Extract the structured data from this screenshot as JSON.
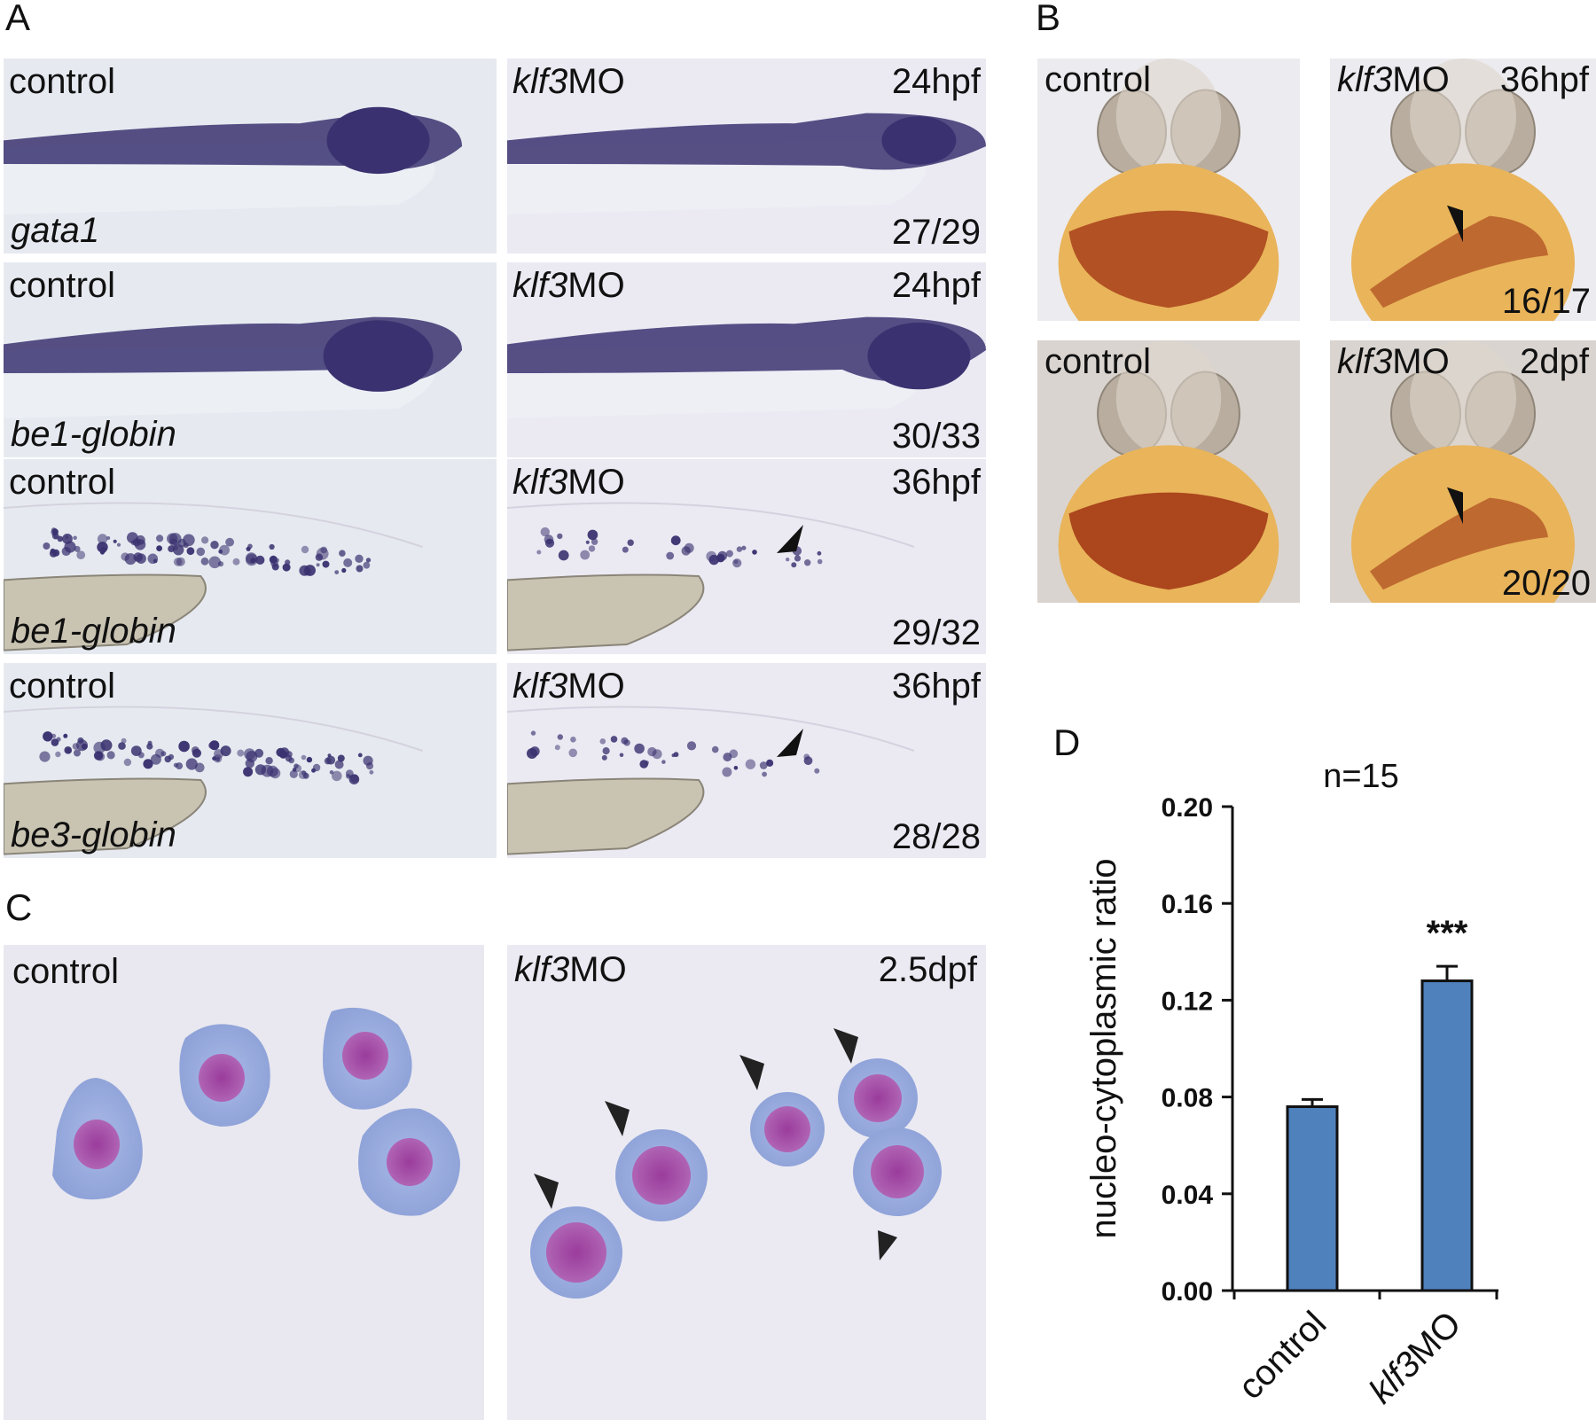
{
  "panel_labels": {
    "A": "A",
    "B": "B",
    "C": "C",
    "D": "D"
  },
  "panel_a": {
    "rows": [
      {
        "left_label": "control",
        "right_label_italic": "klf3",
        "right_label_rest": "MO",
        "stage": "24hpf",
        "gene": "gata1",
        "count": "27/29",
        "arrow": false
      },
      {
        "left_label": "control",
        "right_label_italic": "klf3",
        "right_label_rest": "MO",
        "stage": "24hpf",
        "gene": "be1-globin",
        "count": "30/33",
        "arrow": false
      },
      {
        "left_label": "control",
        "right_label_italic": "klf3",
        "right_label_rest": "MO",
        "stage": "36hpf",
        "gene": "be1-globin",
        "count": "29/32",
        "arrow": true
      },
      {
        "left_label": "control",
        "right_label_italic": "klf3",
        "right_label_rest": "MO",
        "stage": "36hpf",
        "gene": "be3-globin",
        "count": "28/28",
        "arrow": true
      }
    ]
  },
  "panel_b": {
    "rows": [
      {
        "left_label": "control",
        "right_label_italic": "klf3",
        "right_label_rest": "MO",
        "stage": "36hpf",
        "count": "16/17"
      },
      {
        "left_label": "control",
        "right_label_italic": "klf3",
        "right_label_rest": "MO",
        "stage": "2dpf",
        "count": "20/20"
      }
    ]
  },
  "panel_c": {
    "left_label": "control",
    "right_label_italic": "klf3",
    "right_label_rest": "MO",
    "stage": "2.5dpf"
  },
  "chart_data": {
    "type": "bar",
    "title": "n=15",
    "ylabel": "nucleo-cytoplasmic ratio",
    "xlabel": "",
    "categories": [
      "control",
      "klf3MO"
    ],
    "category_labels": [
      {
        "italic": "",
        "rest": "control"
      },
      {
        "italic": "klf3",
        "rest": "MO"
      }
    ],
    "values": [
      0.076,
      0.128
    ],
    "errors": [
      0.003,
      0.006
    ],
    "ylim": [
      0,
      0.2
    ],
    "yticks": [
      "0.00",
      "0.04",
      "0.08",
      "0.12",
      "0.16",
      "0.20"
    ],
    "ytick_values": [
      0,
      0.04,
      0.08,
      0.12,
      0.16,
      0.2
    ],
    "annotations": [
      {
        "category": "klf3MO",
        "text": "***"
      }
    ],
    "bar_color": "#4f81bd",
    "grid": false,
    "legend": "none"
  },
  "colors": {
    "stain_blue": "#3a3270",
    "benzidine": "#a8401a",
    "yolk": "#e9b45a",
    "bar": "#4f81bd"
  }
}
